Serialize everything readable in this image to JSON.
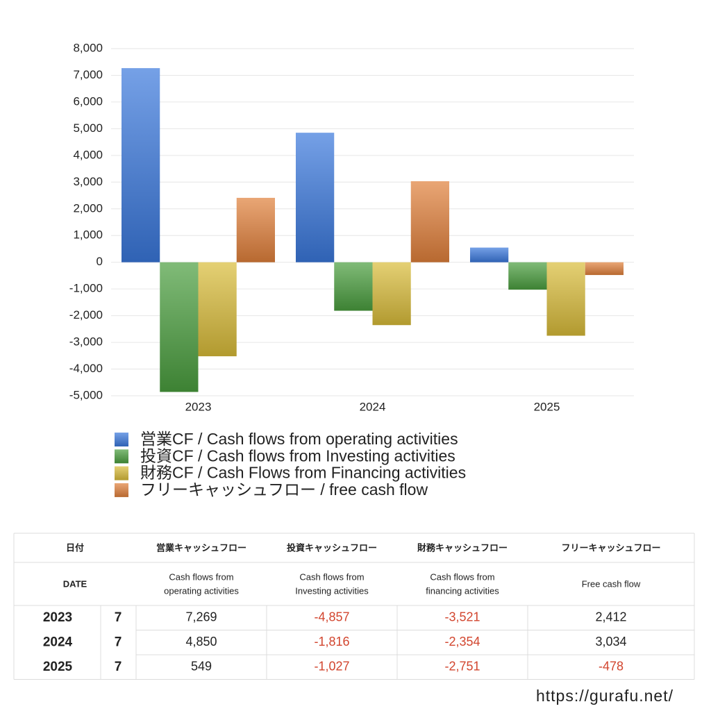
{
  "chart_data": {
    "type": "bar",
    "categories": [
      "2023",
      "2024",
      "2025"
    ],
    "series": [
      {
        "name": "営業CF / Cash flows from operating activities",
        "color": "#3a78dc",
        "values": [
          7269,
          4850,
          549
        ]
      },
      {
        "name": "投資CF / Cash flows from Investing activities",
        "color": "#4a9e3e",
        "values": [
          -4857,
          -1816,
          -1027
        ]
      },
      {
        "name": "財務CF / Cash Flows from Financing activities",
        "color": "#d9bc38",
        "values": [
          -3521,
          -2354,
          -2751
        ]
      },
      {
        "name": "フリーキャッシュフロー / free cash flow",
        "color": "#e0803a",
        "values": [
          2412,
          3034,
          -478
        ]
      }
    ],
    "ylim": [
      -5000,
      8000
    ],
    "yticks": [
      {
        "value": -5000,
        "label": "-5,000"
      },
      {
        "value": -4000,
        "label": "-4,000"
      },
      {
        "value": -3000,
        "label": "-3,000"
      },
      {
        "value": -2000,
        "label": "-2,000"
      },
      {
        "value": -1000,
        "label": "-1,000"
      },
      0,
      {
        "value": 1000,
        "label": "1,000"
      },
      {
        "value": 2000,
        "label": "2,000"
      },
      {
        "value": 3000,
        "label": "3,000"
      },
      {
        "value": 4000,
        "label": "4,000"
      },
      {
        "value": 5000,
        "label": "5,000"
      },
      {
        "value": 6000,
        "label": "6,000"
      },
      {
        "value": 7000,
        "label": "7,000"
      },
      {
        "value": 8000,
        "label": "8,000"
      }
    ],
    "grid": true,
    "legend": "bottom"
  },
  "table": {
    "header": {
      "date_jp": "日付",
      "date_en": "DATE",
      "columns_jp": [
        "営業キャッシュフロー",
        "投資キャッシュフロー",
        "財務キャッシュフロー",
        "フリーキャッシュフロー"
      ],
      "columns_en": [
        [
          "Cash flows from",
          "operating activities"
        ],
        [
          "Cash flows from",
          "Investing activities"
        ],
        [
          "Cash flows from",
          "financing activities"
        ],
        [
          "Free cash flow"
        ]
      ]
    },
    "rows": [
      {
        "year": "2023",
        "month": "7",
        "values": [
          "7,269",
          "-4,857",
          "-3,521",
          "2,412"
        ]
      },
      {
        "year": "2024",
        "month": "7",
        "values": [
          "4,850",
          "-1,816",
          "-2,354",
          "3,034"
        ]
      },
      {
        "year": "2025",
        "month": "7",
        "values": [
          "549",
          "-1,027",
          "-2,751",
          "-478"
        ]
      }
    ]
  },
  "footer": {
    "url": "https://gurafu.net/"
  }
}
